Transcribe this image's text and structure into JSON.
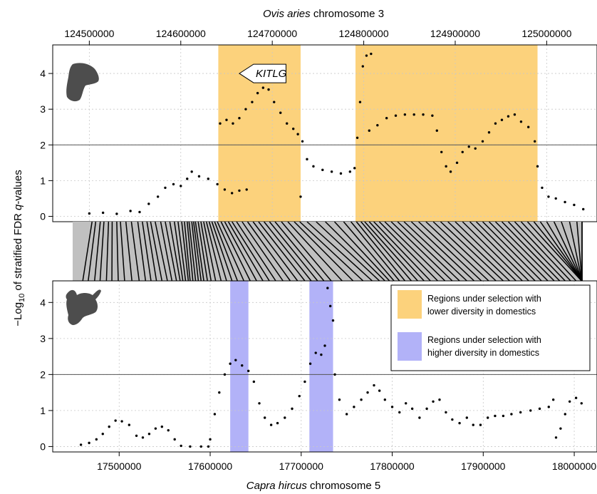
{
  "colors": {
    "lower_diversity": "#fcd27c",
    "higher_diversity": "#b2b2f8",
    "points": "#000000",
    "threshold": "#555555",
    "grid": "#c8c8c8",
    "synteny_bg": "#c0c0c0",
    "silhouette": "#4d4d4d"
  },
  "icons": {
    "top": "sheep-head-icon",
    "bottom": "goat-head-icon"
  },
  "chart_data": [
    {
      "type": "scatter",
      "panel": "sheep",
      "top_axis_title_italic": "Ovis aries",
      "top_axis_title_rest": " chromosome 3",
      "xlim": [
        124460000,
        125055000
      ],
      "x_ticks": [
        124500000,
        124600000,
        124700000,
        124800000,
        124900000,
        125000000
      ],
      "x_tick_labels": [
        "124500000",
        "124600000",
        "124700000",
        "124800000",
        "124900000",
        "125000000"
      ],
      "ylim": [
        -0.15,
        4.8
      ],
      "y_ticks": [
        0,
        1,
        2,
        3,
        4
      ],
      "y_tick_labels": [
        "0",
        "1",
        "2",
        "3",
        "4"
      ],
      "threshold": 2,
      "regions_lower_diversity": [
        [
          124641000,
          124731000
        ],
        [
          124791000,
          124990000
        ]
      ],
      "gene_label": "KITLG",
      "gene_arrow": {
        "x_start": 124715000,
        "x_end": 124664000,
        "y": 4.0
      },
      "points": [
        [
          124500000,
          0.08
        ],
        [
          124515000,
          0.1
        ],
        [
          124530000,
          0.07
        ],
        [
          124545000,
          0.15
        ],
        [
          124555000,
          0.12
        ],
        [
          124565000,
          0.35
        ],
        [
          124575000,
          0.55
        ],
        [
          124583000,
          0.8
        ],
        [
          124592000,
          0.9
        ],
        [
          124600000,
          0.85
        ],
        [
          124607000,
          1.05
        ],
        [
          124612000,
          1.25
        ],
        [
          124620000,
          1.12
        ],
        [
          124630000,
          1.05
        ],
        [
          124640000,
          0.9
        ],
        [
          124648000,
          0.75
        ],
        [
          124656000,
          0.65
        ],
        [
          124664000,
          0.72
        ],
        [
          124672000,
          0.75
        ],
        [
          124643000,
          2.6
        ],
        [
          124650000,
          2.7
        ],
        [
          124657000,
          2.6
        ],
        [
          124664000,
          2.75
        ],
        [
          124671000,
          3.0
        ],
        [
          124678000,
          3.2
        ],
        [
          124684000,
          3.45
        ],
        [
          124690000,
          3.6
        ],
        [
          124696000,
          3.55
        ],
        [
          124702000,
          3.2
        ],
        [
          124709000,
          2.9
        ],
        [
          124716000,
          2.6
        ],
        [
          124723000,
          2.45
        ],
        [
          124728000,
          2.3
        ],
        [
          124731000,
          0.55
        ],
        [
          124733000,
          2.1
        ],
        [
          124738000,
          1.6
        ],
        [
          124745000,
          1.4
        ],
        [
          124755000,
          1.3
        ],
        [
          124765000,
          1.25
        ],
        [
          124775000,
          1.2
        ],
        [
          124785000,
          1.25
        ],
        [
          124790000,
          1.35
        ],
        [
          124793000,
          2.2
        ],
        [
          124796000,
          3.2
        ],
        [
          124799000,
          4.2
        ],
        [
          124803000,
          4.5
        ],
        [
          124808000,
          4.55
        ],
        [
          124806000,
          2.4
        ],
        [
          124815000,
          2.55
        ],
        [
          124825000,
          2.75
        ],
        [
          124835000,
          2.82
        ],
        [
          124845000,
          2.85
        ],
        [
          124855000,
          2.85
        ],
        [
          124865000,
          2.85
        ],
        [
          124875000,
          2.82
        ],
        [
          124880000,
          2.4
        ],
        [
          124885000,
          1.8
        ],
        [
          124890000,
          1.4
        ],
        [
          124895000,
          1.25
        ],
        [
          124902000,
          1.5
        ],
        [
          124908000,
          1.8
        ],
        [
          124915000,
          1.95
        ],
        [
          124922000,
          1.9
        ],
        [
          124930000,
          2.1
        ],
        [
          124937000,
          2.35
        ],
        [
          124944000,
          2.6
        ],
        [
          124951000,
          2.7
        ],
        [
          124958000,
          2.8
        ],
        [
          124965000,
          2.85
        ],
        [
          124972000,
          2.65
        ],
        [
          124980000,
          2.5
        ],
        [
          124987000,
          2.1
        ],
        [
          124990000,
          1.4
        ],
        [
          124995000,
          0.8
        ],
        [
          125002000,
          0.55
        ],
        [
          125010000,
          0.5
        ],
        [
          125020000,
          0.4
        ],
        [
          125030000,
          0.32
        ],
        [
          125040000,
          0.2
        ]
      ]
    },
    {
      "type": "scatter",
      "panel": "goat",
      "bottom_axis_title_italic": "Capra hircus",
      "bottom_axis_title_rest": " chromosome 5",
      "xlim": [
        17427000,
        18025000
      ],
      "x_ticks": [
        17500000,
        17600000,
        17700000,
        17800000,
        17900000,
        18000000
      ],
      "x_tick_labels": [
        "17500000",
        "17600000",
        "17700000",
        "17800000",
        "17900000",
        "18000000"
      ],
      "ylim": [
        -0.15,
        4.6
      ],
      "y_ticks": [
        0,
        1,
        2,
        3,
        4
      ],
      "y_tick_labels": [
        "0",
        "1",
        "2",
        "3",
        "4"
      ],
      "threshold": 2,
      "regions_higher_diversity": [
        [
          17622000,
          17642000
        ],
        [
          17709000,
          17735000
        ]
      ],
      "points": [
        [
          17458000,
          0.05
        ],
        [
          17467000,
          0.1
        ],
        [
          17475000,
          0.2
        ],
        [
          17482000,
          0.35
        ],
        [
          17489000,
          0.55
        ],
        [
          17496000,
          0.72
        ],
        [
          17503000,
          0.7
        ],
        [
          17511000,
          0.6
        ],
        [
          17519000,
          0.3
        ],
        [
          17526000,
          0.25
        ],
        [
          17533000,
          0.35
        ],
        [
          17540000,
          0.5
        ],
        [
          17547000,
          0.55
        ],
        [
          17554000,
          0.45
        ],
        [
          17561000,
          0.2
        ],
        [
          17568000,
          0.02
        ],
        [
          17578000,
          0.0
        ],
        [
          17590000,
          0.0
        ],
        [
          17598000,
          0.0
        ],
        [
          17600000,
          0.2
        ],
        [
          17605000,
          0.9
        ],
        [
          17610000,
          1.5
        ],
        [
          17616000,
          2.0
        ],
        [
          17622000,
          2.3
        ],
        [
          17628000,
          2.4
        ],
        [
          17635000,
          2.25
        ],
        [
          17642000,
          2.1
        ],
        [
          17648000,
          1.8
        ],
        [
          17654000,
          1.2
        ],
        [
          17660000,
          0.8
        ],
        [
          17667000,
          0.6
        ],
        [
          17674000,
          0.65
        ],
        [
          17682000,
          0.8
        ],
        [
          17690000,
          1.05
        ],
        [
          17698000,
          1.4
        ],
        [
          17704000,
          1.8
        ],
        [
          17710000,
          2.3
        ],
        [
          17716000,
          2.6
        ],
        [
          17722000,
          2.55
        ],
        [
          17726000,
          2.8
        ],
        [
          17729000,
          4.4
        ],
        [
          17732000,
          3.9
        ],
        [
          17735000,
          3.5
        ],
        [
          17737000,
          2.0
        ],
        [
          17742000,
          1.3
        ],
        [
          17750000,
          0.9
        ],
        [
          17758000,
          1.1
        ],
        [
          17766000,
          1.3
        ],
        [
          17773000,
          1.5
        ],
        [
          17780000,
          1.7
        ],
        [
          17786000,
          1.55
        ],
        [
          17792000,
          1.3
        ],
        [
          17800000,
          1.1
        ],
        [
          17808000,
          0.95
        ],
        [
          17815000,
          1.2
        ],
        [
          17822000,
          1.05
        ],
        [
          17830000,
          0.8
        ],
        [
          17838000,
          1.05
        ],
        [
          17845000,
          1.25
        ],
        [
          17852000,
          1.3
        ],
        [
          17859000,
          0.95
        ],
        [
          17866000,
          0.75
        ],
        [
          17874000,
          0.65
        ],
        [
          17882000,
          0.8
        ],
        [
          17889000,
          0.6
        ],
        [
          17897000,
          0.6
        ],
        [
          17905000,
          0.8
        ],
        [
          17913000,
          0.85
        ],
        [
          17922000,
          0.85
        ],
        [
          17931000,
          0.9
        ],
        [
          17941000,
          0.95
        ],
        [
          17952000,
          1.0
        ],
        [
          17962000,
          1.05
        ],
        [
          17972000,
          1.1
        ],
        [
          17977000,
          1.3
        ],
        [
          17980000,
          0.25
        ],
        [
          17985000,
          0.5
        ],
        [
          17990000,
          0.9
        ],
        [
          17995000,
          1.25
        ],
        [
          18002000,
          1.35
        ],
        [
          18008000,
          1.2
        ]
      ]
    }
  ],
  "y_axis_label": {
    "prefix": "−Log",
    "subscript": "10",
    "middle": " of stratified FDR ",
    "italic": "q",
    "suffix": "-values"
  },
  "legend": [
    {
      "label_line1": "Regions under selection with",
      "label_line2": "lower diversity in domestics",
      "color": "#fcd27c"
    },
    {
      "label_line1": "Regions under selection with",
      "label_line2": "higher diversity in domestics",
      "color": "#b2b2f8"
    }
  ],
  "synteny": {
    "sheep_lines": [
      124503000,
      124507000,
      124512000,
      124516000,
      124521000,
      124525000,
      124530000,
      124534000,
      124540000,
      124546000,
      124553000,
      124558000,
      124563000,
      124567000,
      124572000,
      124578000,
      124583000,
      124588000,
      124593000,
      124597000,
      124601000,
      124604000,
      124607000,
      124609000,
      124612000,
      124614000,
      124616000,
      124619000,
      124622000,
      124625000,
      124628000,
      124631000,
      124634000,
      124637000,
      124640000,
      124644000,
      124648000,
      124652000,
      124656000,
      124661000,
      124667000,
      124673000,
      124679000,
      124685000,
      124691000,
      124697000,
      124703000,
      124710000,
      124717000,
      124724000,
      124730000,
      124738000,
      124748000,
      124758000,
      124768000,
      124778000,
      124786000,
      124792000,
      124797000,
      124801000,
      124806000,
      124811000,
      124817000,
      124823000,
      124830000,
      124837000,
      124844000,
      124852000,
      124860000,
      124868000,
      124876000,
      124884000,
      124892000,
      124900000,
      124908000,
      124916000,
      124923000,
      124930000,
      124937000,
      124944000,
      124951000,
      124958000,
      124965000,
      124972000,
      124979000,
      124986000,
      124993000,
      125000000,
      125008000,
      125016000,
      125025000,
      125033000,
      125041000,
      125049000
    ],
    "goat_lines": [
      17460000,
      17466000,
      17473000,
      17479000,
      17486000,
      17492000,
      17499000,
      17506000,
      17514000,
      17522000,
      17529000,
      17535000,
      17541000,
      17547000,
      17553000,
      17558000,
      17563000,
      17567000,
      17570000,
      17573000,
      17576000,
      17578000,
      17581000,
      17584000,
      17587000,
      17590000,
      17593000,
      17597000,
      17601000,
      17606000,
      17612000,
      17618000,
      17624000,
      17630000,
      17637000,
      17644000,
      17651000,
      17658000,
      17665000,
      17672000,
      17680000,
      17688000,
      17696000,
      17704000,
      17711000,
      17718000,
      17725000,
      17733000,
      17745000,
      17757000,
      17768000,
      17778000,
      17786000,
      17792000,
      17797000,
      17802000,
      17808000,
      17814000,
      17821000,
      17828000,
      17835000,
      17842000,
      17850000,
      17858000,
      17866000,
      17874000,
      17882000,
      17890000,
      17898000,
      17906000,
      17914000,
      17922000,
      17929000,
      17936000,
      17943000,
      17950000,
      17957000,
      17964000,
      17971000,
      17978000,
      17984000,
      17990000,
      17996000,
      18002000,
      18008000,
      18014000,
      18019000,
      18023000,
      18026000,
      18029000,
      18032000,
      18035000,
      18038000,
      18041000
    ]
  }
}
